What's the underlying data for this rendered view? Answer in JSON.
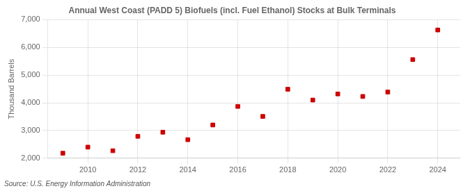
{
  "chart_data": {
    "type": "scatter",
    "title": "Annual West Coast (PADD 5) Biofuels (incl. Fuel Ethanol) Stocks at Bulk Terminals",
    "ylabel": "Thousand Barrels",
    "annotations": [
      "Source: U.S. Energy Information Administration"
    ],
    "x": [
      2009,
      2010,
      2011,
      2012,
      2013,
      2014,
      2015,
      2016,
      2017,
      2018,
      2019,
      2020,
      2021,
      2022,
      2023,
      2024
    ],
    "values": [
      2180,
      2400,
      2270,
      2790,
      2940,
      2670,
      3200,
      3870,
      3510,
      4490,
      4100,
      4320,
      4230,
      4390,
      5560,
      6630
    ],
    "color": "#cc0000",
    "marker": "square",
    "xlim": [
      2008.4,
      2024.9
    ],
    "xticks": [
      2010,
      2012,
      2014,
      2016,
      2018,
      2020,
      2022,
      2024
    ],
    "ylim": [
      2000,
      7000
    ],
    "yticks": [
      {
        "value": 2000,
        "label": "2,000"
      },
      {
        "value": 3000,
        "label": "3,000"
      },
      {
        "value": 4000,
        "label": "4,000"
      },
      {
        "value": 5000,
        "label": "5,000"
      },
      {
        "value": 6000,
        "label": "6,000"
      },
      {
        "value": 7000,
        "label": "7,000"
      }
    ],
    "grid": true
  }
}
